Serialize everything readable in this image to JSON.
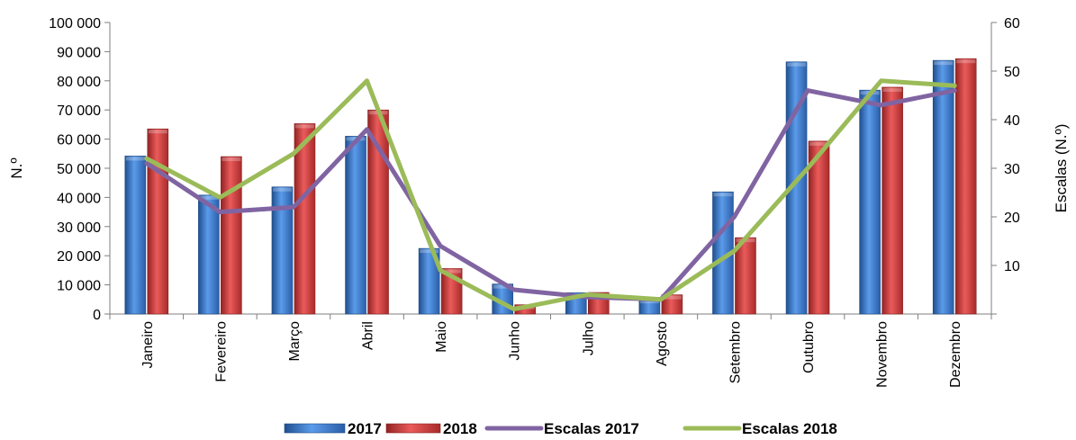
{
  "chart_data": {
    "type": "bar",
    "categories": [
      "Janeiro",
      "Fevereiro",
      "Março",
      "Abril",
      "Maio",
      "Junho",
      "Julho",
      "Agosto",
      "Setembro",
      "Outubro",
      "Novembro",
      "Dezembro"
    ],
    "series": [
      {
        "name": "2017",
        "kind": "bar",
        "axis": "left",
        "color": "#3a78c9",
        "values": [
          54200,
          40800,
          43600,
          61000,
          22500,
          10300,
          7300,
          5200,
          41900,
          86500,
          76800,
          87000
        ]
      },
      {
        "name": "2018",
        "kind": "bar",
        "axis": "left",
        "color": "#cf3a3a",
        "values": [
          63500,
          54000,
          65300,
          70000,
          15600,
          3200,
          7400,
          6600,
          26200,
          59300,
          77800,
          87600
        ]
      },
      {
        "name": "Escalas 2017",
        "kind": "line",
        "axis": "right",
        "color": "#8064a2",
        "values": [
          31,
          21,
          22,
          38,
          14,
          5,
          3.5,
          3,
          20,
          46,
          43,
          46
        ]
      },
      {
        "name": "Escalas 2018",
        "kind": "line",
        "axis": "right",
        "color": "#9bbb59",
        "values": [
          32,
          24,
          33,
          48,
          9,
          1,
          4,
          3,
          13,
          30,
          48,
          47
        ]
      }
    ],
    "ylabel": "N.º",
    "y2label": "Escalas (N.º)",
    "ylim": [
      0,
      100000
    ],
    "y2lim": [
      0,
      60
    ],
    "yticks": [
      "0",
      "10 000",
      "20 000",
      "30 000",
      "40 000",
      "50 000",
      "60 000",
      "70 000",
      "80 000",
      "90 000",
      "100 000"
    ],
    "y2ticks": [
      "10",
      "20",
      "30",
      "40",
      "50",
      "60"
    ],
    "grid": false,
    "legend_position": "bottom"
  }
}
